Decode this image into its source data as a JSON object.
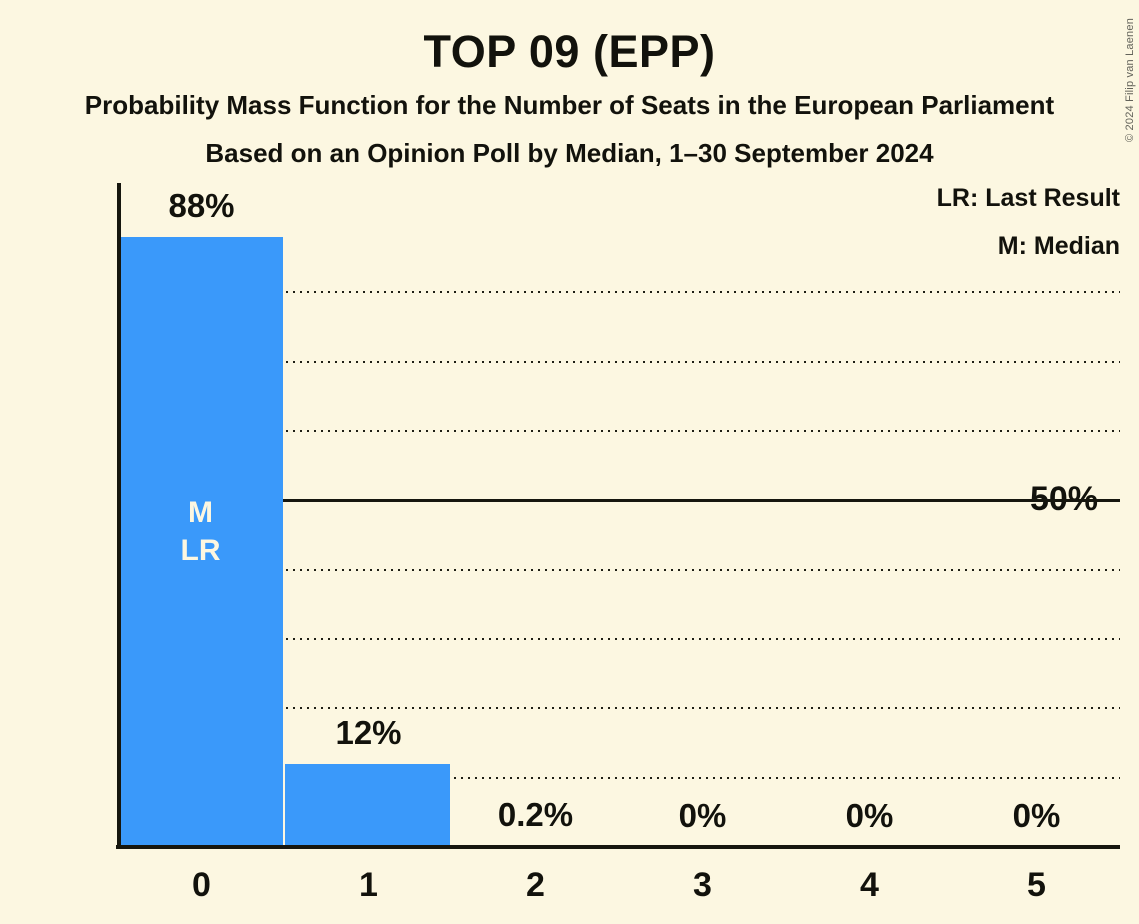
{
  "header": {
    "title": "TOP 09 (EPP)",
    "subtitle1": "Probability Mass Function for the Number of Seats in the European Parliament",
    "subtitle2": "Based on an Opinion Poll by Median, 1–30 September 2024"
  },
  "legend": {
    "last_result": "LR: Last Result",
    "median": "M: Median"
  },
  "copyright": "© 2024 Filip van Laenen",
  "colors": {
    "background": "#FCF7E1",
    "bar": "#3A99FA",
    "text": "#12120C",
    "grid": "#1E1E14"
  },
  "chart_data": {
    "type": "bar",
    "title": "TOP 09 (EPP)",
    "categories": [
      "0",
      "1",
      "2",
      "3",
      "4",
      "5"
    ],
    "values": [
      88,
      12,
      0.2,
      0,
      0,
      0
    ],
    "bar_labels": [
      "88%",
      "12%",
      "0.2%",
      "0%",
      "0%",
      "0%"
    ],
    "xlabel": "",
    "ylabel": "",
    "ylim": [
      0,
      96
    ],
    "ytick": {
      "value": 50,
      "label": "50%"
    },
    "gridlines_percent": [
      10,
      20,
      30,
      40,
      60,
      70,
      80
    ],
    "solid_line_percent": 50,
    "grid_style": "dotted horizontal",
    "legend_position": "top-right",
    "annotations": [
      {
        "category_index": 0,
        "lines": "M\nLR",
        "meaning": "Median and Last Result at 0 seats"
      }
    ]
  }
}
